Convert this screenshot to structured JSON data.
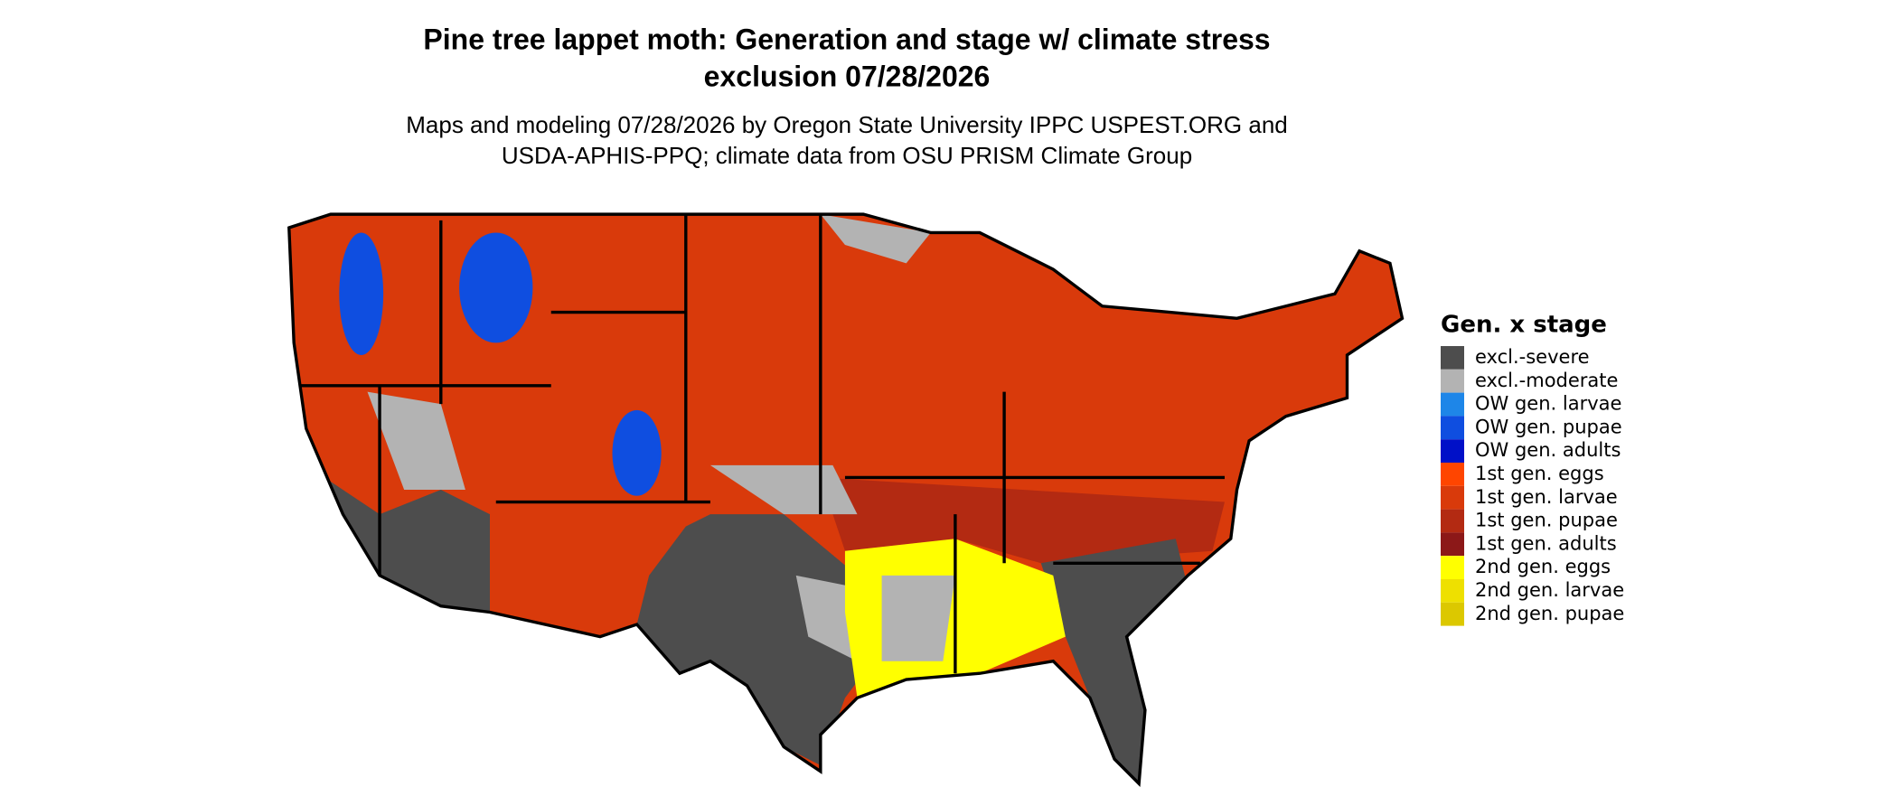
{
  "title": [
    "Pine tree lappet moth: Generation and stage w/ climate stress",
    "exclusion 07/28/2026"
  ],
  "subtitle": [
    "Maps and modeling 07/28/2026 by Oregon State University IPPC USPEST.ORG and",
    "USDA-APHIS-PPQ; climate data from OSU PRISM Climate Group"
  ],
  "legend": {
    "title": "Gen. x stage",
    "items": [
      {
        "label": "excl.-severe",
        "color": "#4d4d4d"
      },
      {
        "label": "excl.-moderate",
        "color": "#b3b3b3"
      },
      {
        "label": "OW gen. larvae",
        "color": "#1e86e8"
      },
      {
        "label": "OW gen. pupae",
        "color": "#0f4ee0"
      },
      {
        "label": "OW gen. adults",
        "color": "#0010c8"
      },
      {
        "label": "1st gen. eggs",
        "color": "#ff4500"
      },
      {
        "label": "1st gen. larvae",
        "color": "#d93a0b"
      },
      {
        "label": "1st gen. pupae",
        "color": "#b32a12"
      },
      {
        "label": "1st gen. adults",
        "color": "#8c1818"
      },
      {
        "label": "2nd gen. eggs",
        "color": "#ffff00"
      },
      {
        "label": "2nd gen. larvae",
        "color": "#eee000"
      },
      {
        "label": "2nd gen. pupae",
        "color": "#dcc800"
      }
    ]
  }
}
